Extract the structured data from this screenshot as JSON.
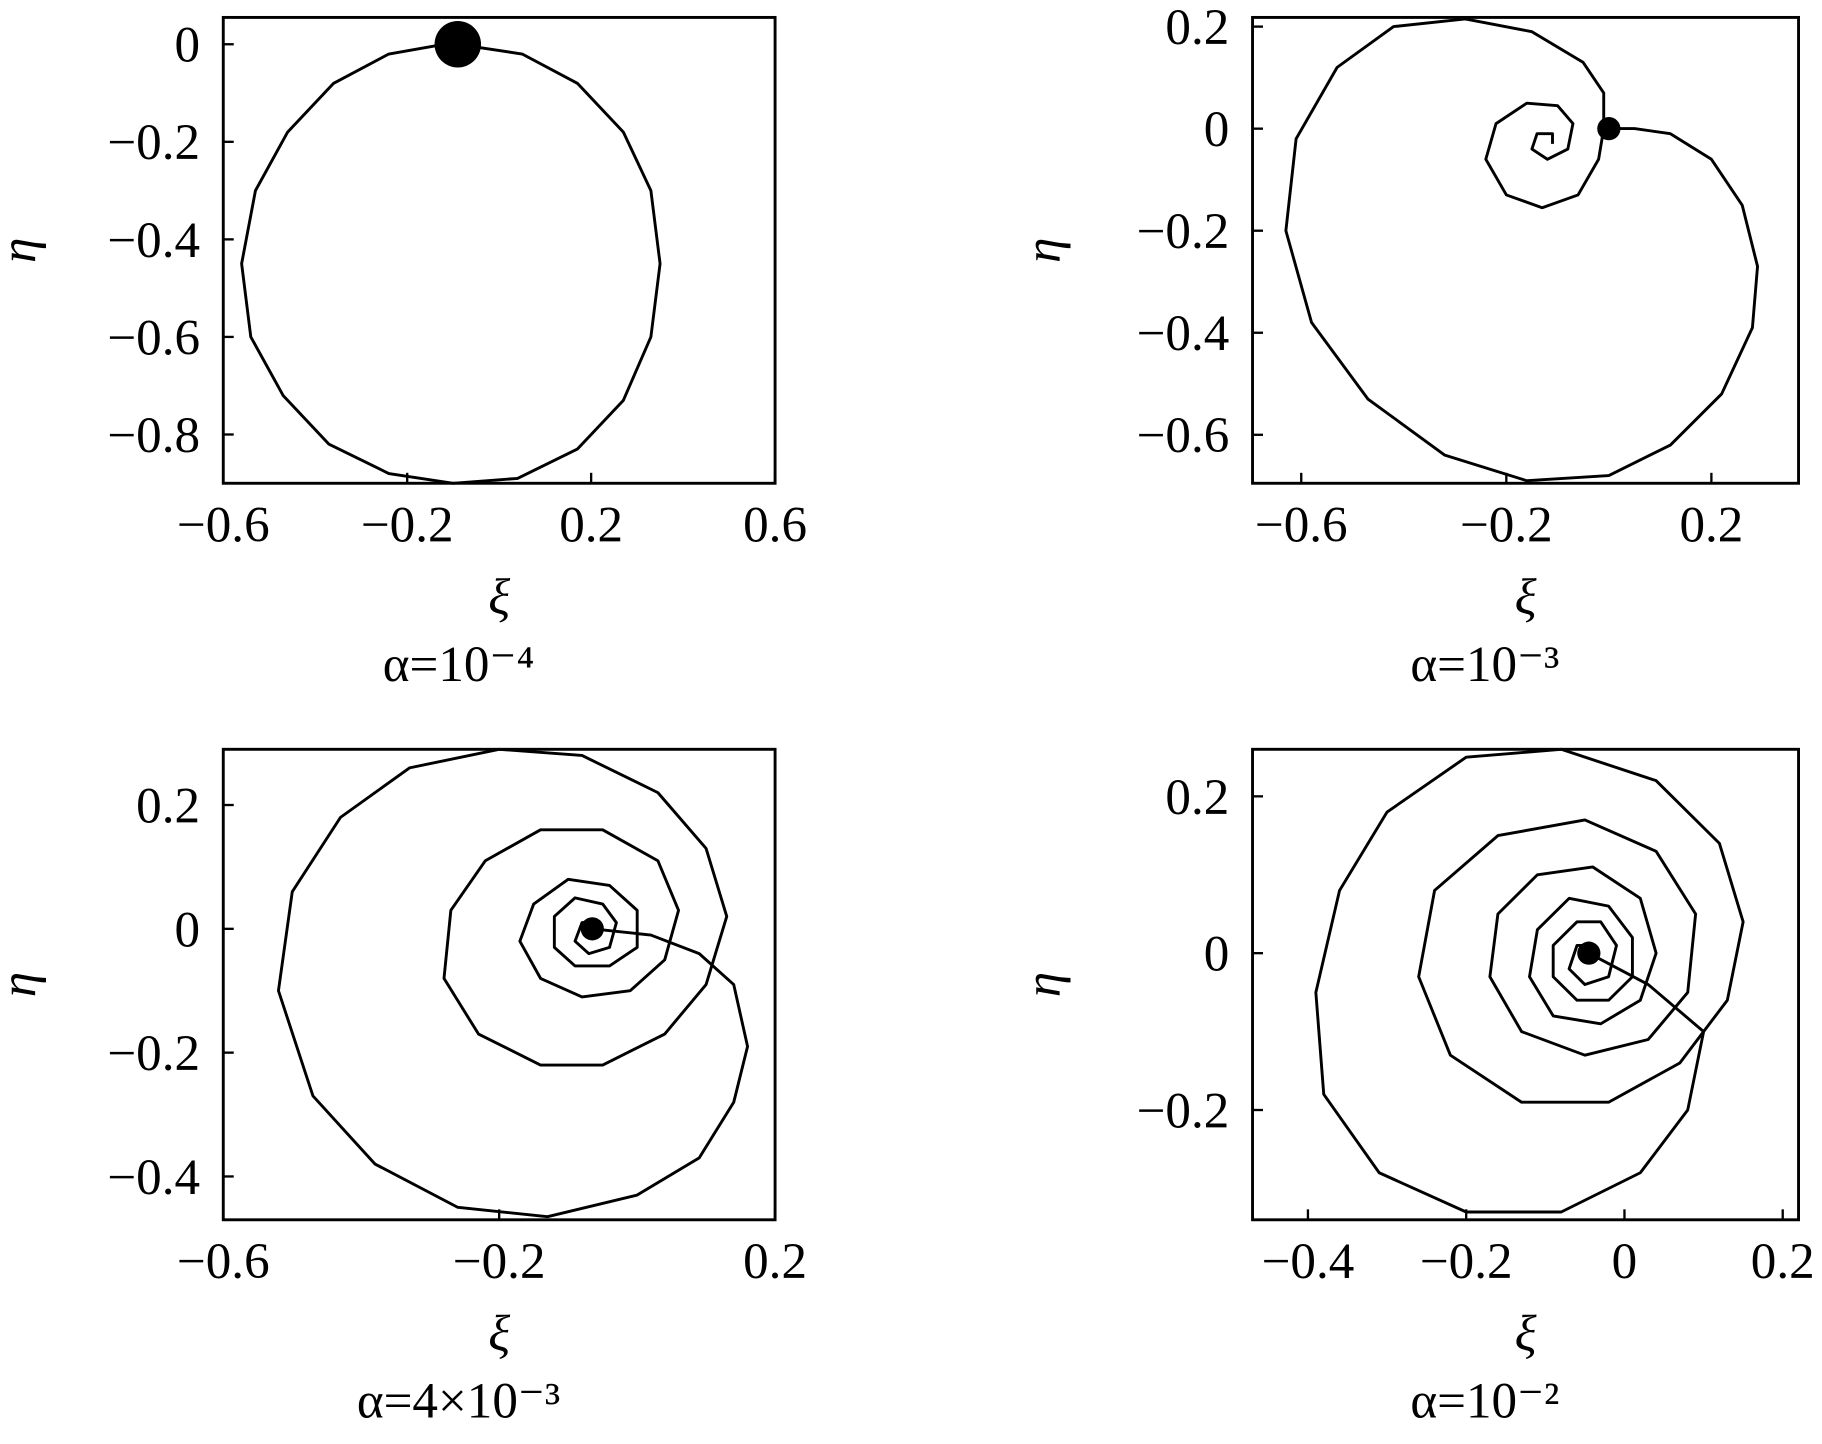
{
  "chart_data": [
    {
      "type": "line",
      "title": "α=10⁻⁴",
      "xlabel": "ξ",
      "ylabel": "η",
      "xlim": [
        -0.6,
        0.6
      ],
      "ylim": [
        -0.9,
        0.055
      ],
      "xticks": [
        {
          "value": -0.6,
          "label": "−0.6"
        },
        {
          "value": -0.2,
          "label": "−0.2"
        },
        0.2,
        0.6
      ],
      "yticks": [
        0,
        {
          "value": -0.2,
          "label": "−0.2"
        },
        {
          "value": -0.4,
          "label": "−0.4"
        },
        {
          "value": -0.6,
          "label": "−0.6"
        },
        {
          "value": -0.8,
          "label": "−0.8"
        }
      ],
      "series": [
        {
          "color": "#000000",
          "x": [
            -0.09,
            0.05,
            0.17,
            0.27,
            0.33,
            0.35,
            0.33,
            0.27,
            0.17,
            0.04,
            -0.1,
            -0.24,
            -0.37,
            -0.47,
            -0.54,
            -0.56,
            -0.53,
            -0.46,
            -0.36,
            -0.24,
            -0.12,
            -0.09
          ],
          "y": [
            0,
            -0.02,
            -0.08,
            -0.18,
            -0.3,
            -0.45,
            -0.6,
            -0.73,
            -0.83,
            -0.89,
            -0.9,
            -0.88,
            -0.82,
            -0.72,
            -0.6,
            -0.45,
            -0.3,
            -0.18,
            -0.08,
            -0.02,
            0,
            0
          ]
        }
      ],
      "markers": {
        "x": [
          -0.09
        ],
        "y": [
          0
        ]
      }
    },
    {
      "type": "line",
      "title": "α=10⁻³",
      "xlabel": "ξ",
      "ylabel": "η",
      "xlim": [
        -0.695,
        0.37
      ],
      "ylim": [
        -0.695,
        0.218
      ],
      "xticks": [
        {
          "value": -0.6,
          "label": "−0.6"
        },
        {
          "value": -0.2,
          "label": "−0.2"
        },
        0.2
      ],
      "yticks": [
        0.2,
        0,
        {
          "value": -0.2,
          "label": "−0.2"
        },
        {
          "value": -0.4,
          "label": "−0.4"
        },
        {
          "value": -0.6,
          "label": "−0.6"
        }
      ],
      "series": [
        {
          "color": "#000000",
          "x": [
            0.0,
            0.05,
            0.12,
            0.2,
            0.26,
            0.29,
            0.28,
            0.22,
            0.12,
            0.0,
            -0.16,
            -0.32,
            -0.47,
            -0.58,
            -0.63,
            -0.61,
            -0.53,
            -0.42,
            -0.28,
            -0.15,
            -0.05,
            -0.01,
            -0.01,
            -0.02,
            -0.06,
            -0.13,
            -0.2,
            -0.24,
            -0.22,
            -0.16,
            -0.1,
            -0.07,
            -0.08,
            -0.12,
            -0.15,
            -0.14,
            -0.11,
            -0.11
          ],
          "y": [
            0,
            0,
            -0.01,
            -0.06,
            -0.15,
            -0.27,
            -0.39,
            -0.52,
            -0.62,
            -0.68,
            -0.69,
            -0.64,
            -0.53,
            -0.38,
            -0.2,
            -0.02,
            0.12,
            0.2,
            0.215,
            0.19,
            0.13,
            0.07,
            0.0,
            -0.06,
            -0.13,
            -0.155,
            -0.13,
            -0.06,
            0.01,
            0.05,
            0.045,
            0.01,
            -0.04,
            -0.06,
            -0.04,
            -0.01,
            -0.01,
            -0.03
          ]
        }
      ],
      "markers": {
        "x": [
          0.0
        ],
        "y": [
          0
        ]
      }
    },
    {
      "type": "line",
      "title": "α=4×10⁻³",
      "xlabel": "ξ",
      "ylabel": "η",
      "xlim": [
        -0.6,
        0.2
      ],
      "ylim": [
        -0.47,
        0.29
      ],
      "xticks": [
        {
          "value": -0.6,
          "label": "−0.6"
        },
        {
          "value": -0.2,
          "label": "−0.2"
        },
        0.2
      ],
      "yticks": [
        0.2,
        0,
        {
          "value": -0.2,
          "label": "−0.2"
        },
        {
          "value": -0.4,
          "label": "−0.4"
        }
      ],
      "series": [
        {
          "color": "#000000",
          "x": [
            -0.065,
            0.02,
            0.09,
            0.14,
            0.16,
            0.14,
            0.09,
            0.0,
            -0.13,
            -0.26,
            -0.38,
            -0.47,
            -0.52,
            -0.5,
            -0.43,
            -0.33,
            -0.2,
            -0.08,
            0.03,
            0.1,
            0.13,
            0.1,
            0.04,
            -0.05,
            -0.14,
            -0.23,
            -0.28,
            -0.27,
            -0.22,
            -0.14,
            -0.05,
            0.03,
            0.06,
            0.04,
            -0.01,
            -0.08,
            -0.14,
            -0.17,
            -0.15,
            -0.1,
            -0.04,
            0.0,
            0.0,
            -0.04,
            -0.09,
            -0.12,
            -0.12,
            -0.09,
            -0.05,
            -0.03,
            -0.04,
            -0.07,
            -0.09,
            -0.08,
            -0.06
          ],
          "y": [
            0,
            -0.01,
            -0.04,
            -0.09,
            -0.19,
            -0.28,
            -0.37,
            -0.43,
            -0.465,
            -0.45,
            -0.38,
            -0.27,
            -0.1,
            0.06,
            0.18,
            0.26,
            0.29,
            0.28,
            0.22,
            0.13,
            0.02,
            -0.09,
            -0.17,
            -0.22,
            -0.22,
            -0.17,
            -0.08,
            0.03,
            0.11,
            0.16,
            0.16,
            0.11,
            0.03,
            -0.05,
            -0.1,
            -0.11,
            -0.08,
            -0.02,
            0.04,
            0.08,
            0.07,
            0.03,
            -0.03,
            -0.06,
            -0.06,
            -0.03,
            0.02,
            0.05,
            0.04,
            0.01,
            -0.03,
            -0.04,
            -0.02,
            0.01,
            0.01
          ]
        }
      ],
      "markers": {
        "x": [
          -0.065
        ],
        "y": [
          0
        ]
      }
    },
    {
      "type": "line",
      "title": "α=10⁻²",
      "xlabel": "ξ",
      "ylabel": "η",
      "xlim": [
        -0.47,
        0.22
      ],
      "ylim": [
        -0.34,
        0.26
      ],
      "xticks": [
        {
          "value": -0.4,
          "label": "−0.4"
        },
        {
          "value": -0.2,
          "label": "−0.2"
        },
        0,
        0.2
      ],
      "yticks": [
        0.2,
        0,
        {
          "value": -0.2,
          "label": "−0.2"
        }
      ],
      "series": [
        {
          "color": "#000000",
          "x": [
            -0.045,
            0.03,
            0.1,
            0.08,
            0.02,
            -0.08,
            -0.2,
            -0.31,
            -0.38,
            -0.39,
            -0.36,
            -0.3,
            -0.2,
            -0.08,
            0.04,
            0.12,
            0.15,
            0.13,
            0.07,
            -0.02,
            -0.13,
            -0.22,
            -0.26,
            -0.24,
            -0.16,
            -0.05,
            0.04,
            0.09,
            0.08,
            0.03,
            -0.05,
            -0.13,
            -0.17,
            -0.16,
            -0.11,
            -0.04,
            0.02,
            0.04,
            0.02,
            -0.03,
            -0.09,
            -0.12,
            -0.11,
            -0.07,
            -0.02,
            0.01,
            0.01,
            -0.02,
            -0.06,
            -0.09,
            -0.09,
            -0.06,
            -0.03,
            -0.01,
            -0.02,
            -0.05,
            -0.07,
            -0.06,
            -0.04,
            -0.04
          ],
          "y": [
            0,
            -0.04,
            -0.1,
            -0.2,
            -0.28,
            -0.33,
            -0.33,
            -0.28,
            -0.18,
            -0.05,
            0.08,
            0.18,
            0.25,
            0.26,
            0.22,
            0.14,
            0.04,
            -0.06,
            -0.14,
            -0.19,
            -0.19,
            -0.13,
            -0.03,
            0.08,
            0.15,
            0.17,
            0.13,
            0.05,
            -0.05,
            -0.11,
            -0.13,
            -0.1,
            -0.03,
            0.05,
            0.1,
            0.11,
            0.07,
            0.0,
            -0.06,
            -0.09,
            -0.08,
            -0.03,
            0.03,
            0.07,
            0.06,
            0.02,
            -0.03,
            -0.06,
            -0.06,
            -0.03,
            0.01,
            0.04,
            0.04,
            0.01,
            -0.03,
            -0.04,
            -0.02,
            0.01,
            0.01,
            -0.01
          ]
        }
      ],
      "markers": {
        "x": [
          -0.045
        ],
        "y": [
          0
        ]
      }
    }
  ]
}
